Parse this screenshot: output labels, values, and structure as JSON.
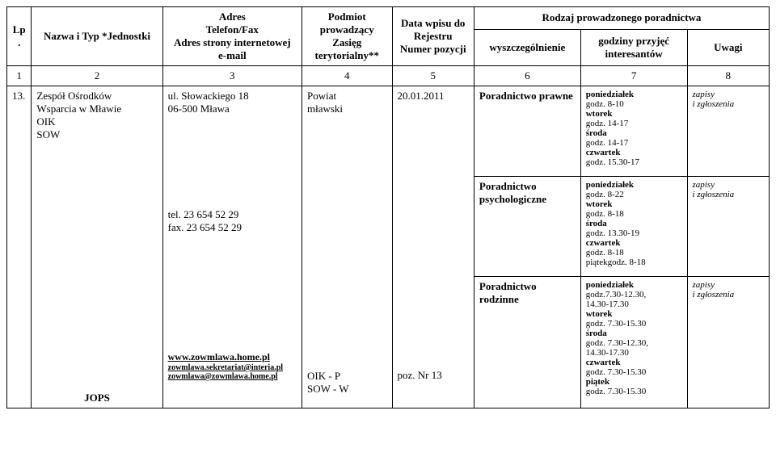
{
  "columns": {
    "lp": "Lp.",
    "nazwa": "Nazwa i Typ *Jednostki",
    "adres": "Adres\nTelefon/Fax\nAdres strony internetowej\ne-mail",
    "podmiot": "Podmiot prowadzący\nZasięg terytorialny**",
    "data": "Data wpisu do Rejestru\nNumer pozycji",
    "rodzaj": "Rodzaj prowadzonego poradnictwa",
    "wyszcz": "wyszczególnienie",
    "godz": "godziny przyjęć interesantów",
    "uwagi": "Uwagi"
  },
  "numrow": {
    "c1": "1",
    "c2": "2",
    "c3": "3",
    "c4": "4",
    "c5": "5",
    "c6": "6",
    "c7": "7",
    "c8": "8"
  },
  "row": {
    "lp": "13.",
    "nazwa_lines": [
      "Zespół Ośrodków",
      "Wsparcia w Mławie",
      "OIK",
      "SOW"
    ],
    "jops": "JOPS",
    "adres_top": [
      "ul. Słowackiego 18",
      "06-500 Mława"
    ],
    "adres_tel": [
      "tel.  23 654 52 29",
      "fax. 23 654 52 29"
    ],
    "adres_links": [
      "www.zowmlawa.home.pl",
      "zowmlawa.sekretariat@interia.pl",
      "zowmlawa@zowmlawa.home.pl"
    ],
    "podmiot_top": [
      "Powiat",
      "mławski"
    ],
    "podmiot_bot": [
      "OIK  -  P",
      "SOW - W"
    ],
    "data_top": "20.01.2011",
    "data_poz": "poz. Nr 13",
    "wys1": "Poradnictwo prawne",
    "wys2": "Poradnictwo psychologiczne",
    "wys3": "Poradnictwo rodzinne",
    "godz1": [
      "poniedziałek",
      "godz. 8-10",
      "wtorek",
      "godz. 14-17",
      "środa",
      "godz. 14-17",
      "czwartek",
      "godz. 15.30-17"
    ],
    "godz2": [
      "poniedziałek",
      "godz. 8-22",
      "wtorek",
      " godz. 8-18",
      "środa",
      " godz. 13.30-19",
      "czwartek",
      " godz. 8-18",
      "piątekgodz. 8-18"
    ],
    "godz3": [
      "poniedziałek",
      "godz.7.30-12.30,",
      "14.30-17.30",
      "wtorek",
      " godz. 7.30-15.30",
      "środa",
      "godz. 7.30-12.30,",
      "14.30-17.30",
      "czwartek",
      " godz. 7.30-15.30",
      "piątek",
      "godz. 7.30-15.30"
    ],
    "uwagi1": [
      "zapisy",
      "i zgłoszenia"
    ],
    "uwagi2": [
      "zapisy",
      "i zgłoszenia"
    ],
    "uwagi3": [
      "zapisy",
      "i zgłoszenia"
    ]
  },
  "widths": {
    "c1": 30,
    "c2": 160,
    "c3": 170,
    "c4": 110,
    "c5": 100,
    "c6": 130,
    "c7": 130,
    "c8": 100
  }
}
